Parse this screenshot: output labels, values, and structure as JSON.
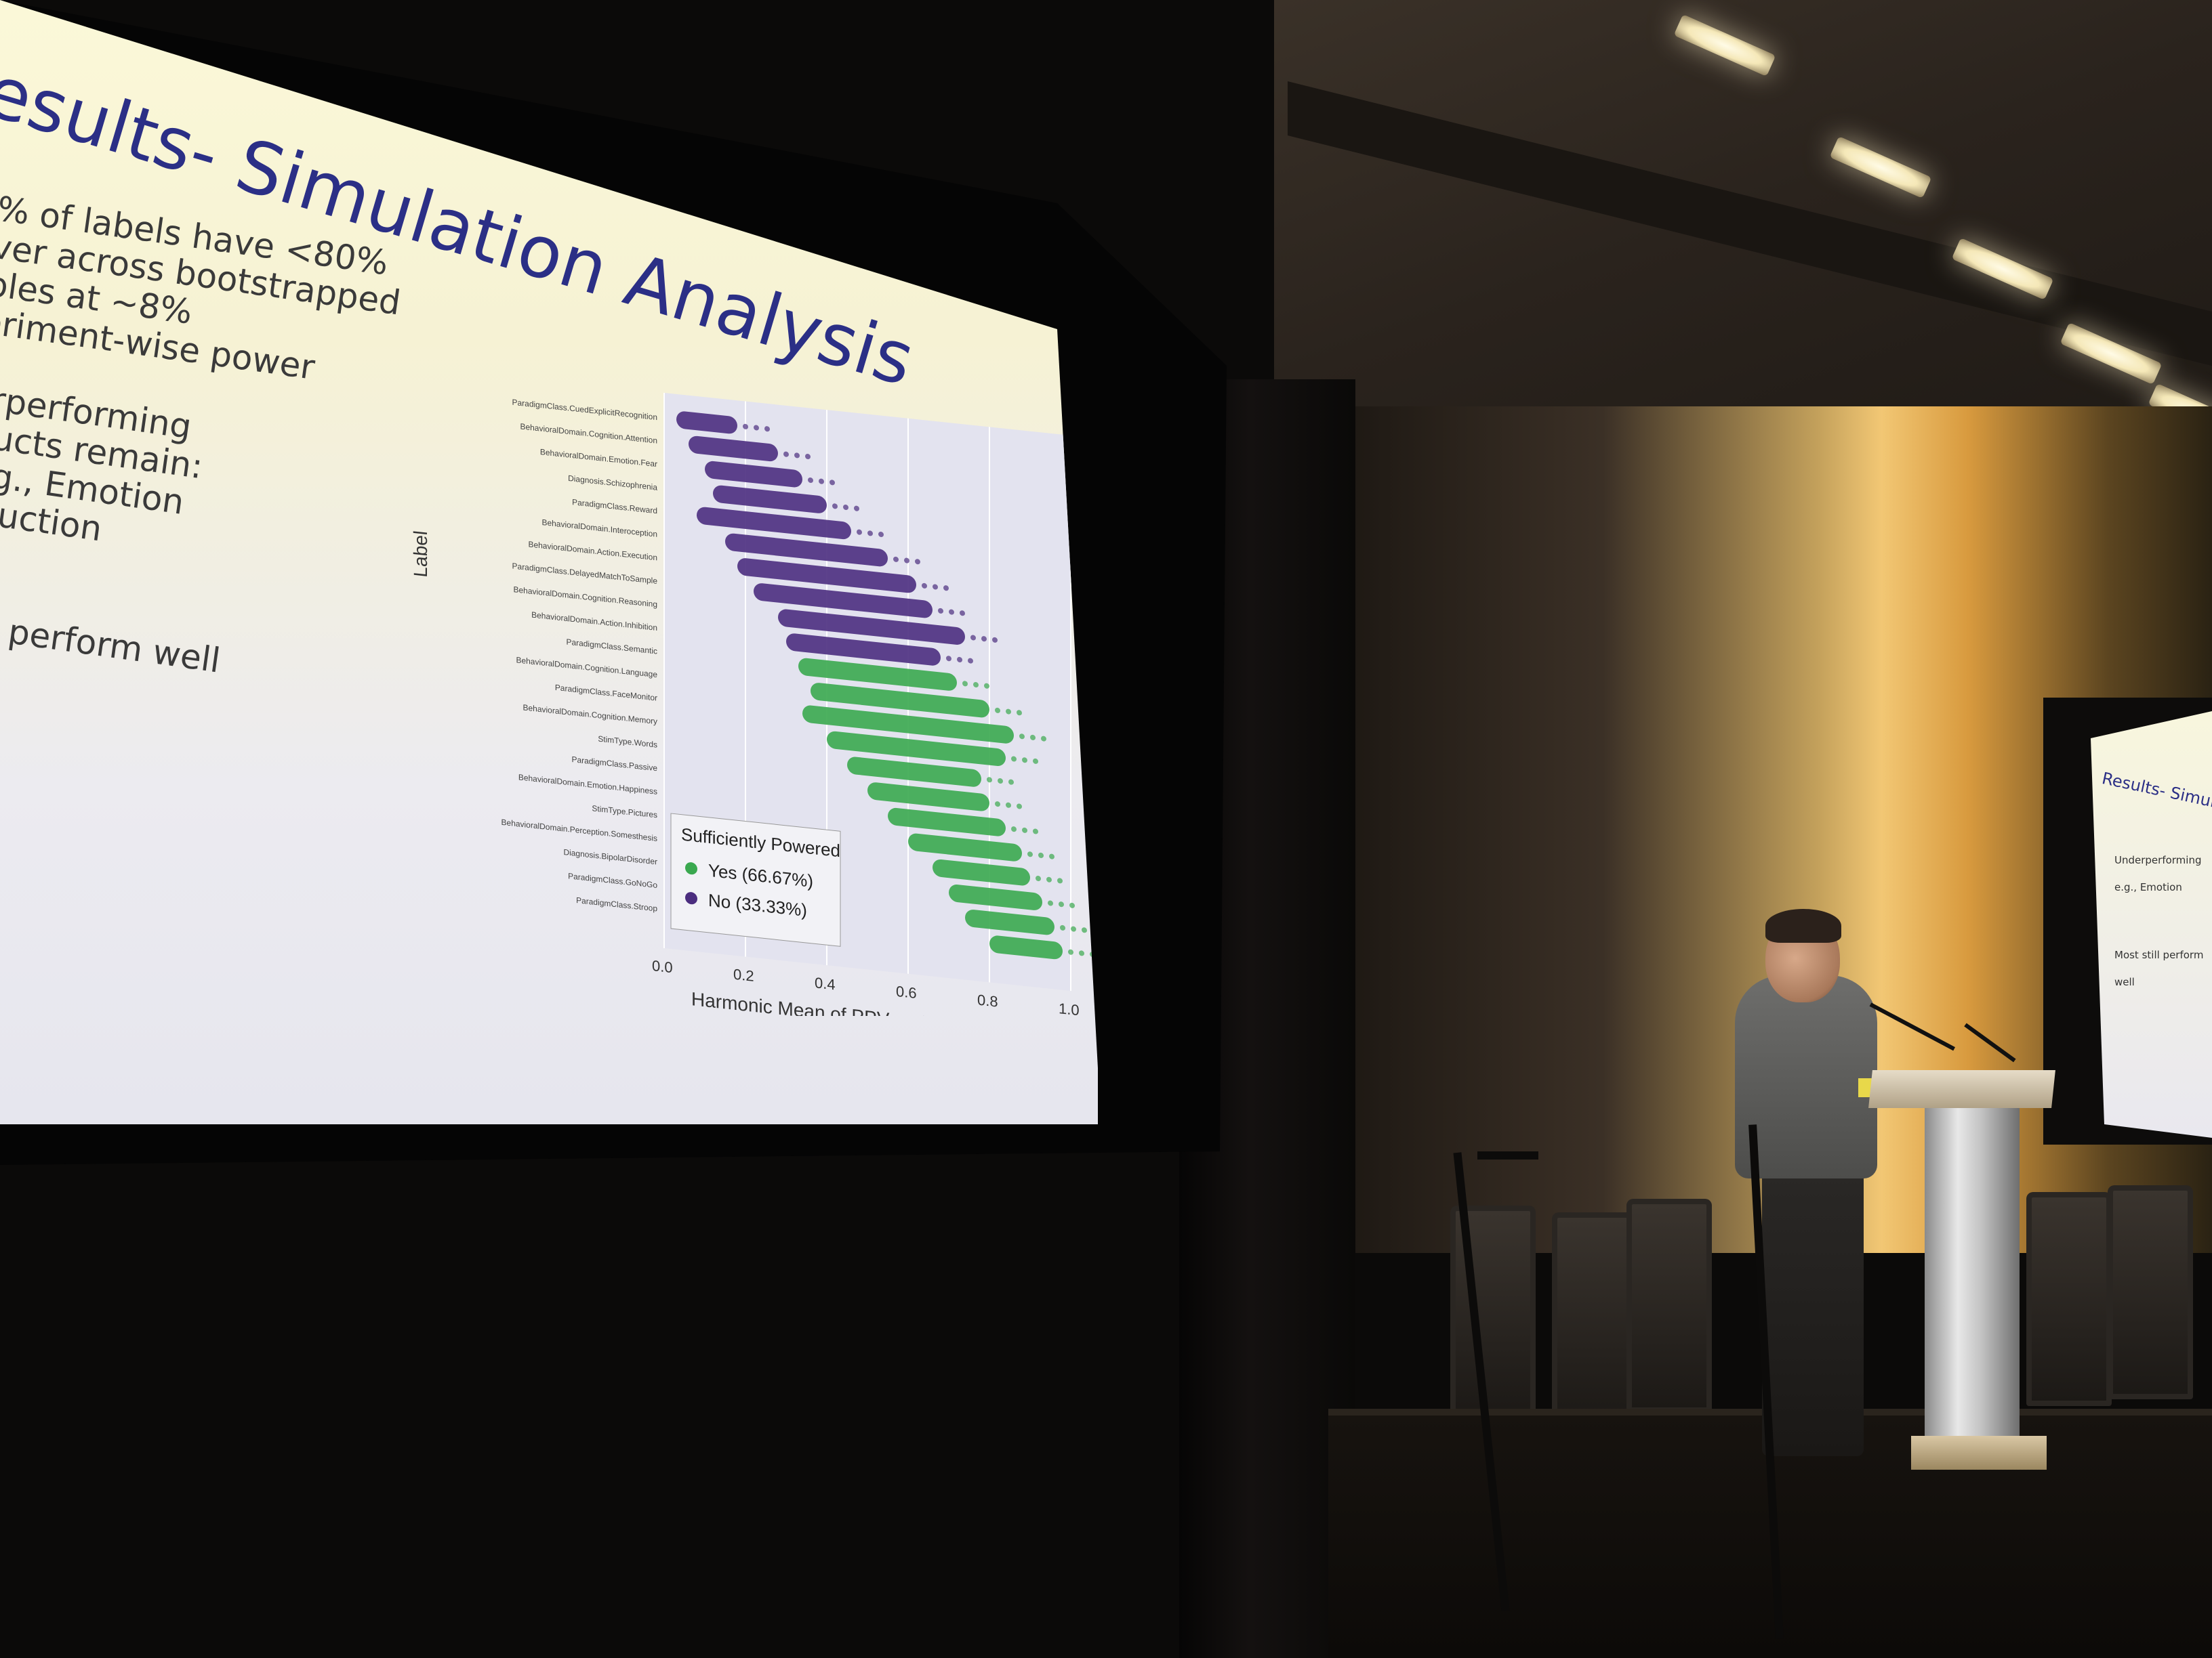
{
  "scene": {
    "description_tag": "conference-talk-photo",
    "colors": {
      "slide_title": "#2b2f86",
      "bullet_text": "#3a3a3a",
      "powered_yes": "#3aa84f",
      "powered_no": "#4b2d7f",
      "plot_bg": "#e3e3ef",
      "stage_glow": "#f2c774"
    }
  },
  "slide": {
    "title": "esults- Simulation Analysis",
    "bullets": [
      "% of labels have <80%",
      "ver across bootstrapped",
      "ples at ~8%",
      "eriment-wise power",
      "",
      "erperforming",
      "tructs remain:",
      "e.g., Emotion",
      "nduction",
      "",
      "",
      "still perform well"
    ]
  },
  "chart_data": {
    "type": "scatter",
    "title": "",
    "xlabel": "Harmonic Mean of PPV and NPV",
    "ylabel": "Label",
    "xlim": [
      0.0,
      1.0
    ],
    "xticks": [
      "0.0",
      "0.2",
      "0.4",
      "0.6",
      "0.8",
      "1.0"
    ],
    "legend": {
      "title": "Sufficiently Powered",
      "position": "bottom-left",
      "entries": [
        {
          "name": "Yes (66.67%)",
          "color": "#3aa84f"
        },
        {
          "name": "No (33.33%)",
          "color": "#4b2d7f"
        }
      ]
    },
    "labels": [
      "ParadigmClass.CuedExplicitRecognition",
      "BehavioralDomain.Cognition.Attention",
      "BehavioralDomain.Emotion.Fear",
      "Diagnosis.Schizophrenia",
      "ParadigmClass.Reward",
      "BehavioralDomain.Interoception",
      "BehavioralDomain.Action.Execution",
      "ParadigmClass.DelayedMatchToSample",
      "BehavioralDomain.Cognition.Reasoning",
      "BehavioralDomain.Action.Inhibition",
      "ParadigmClass.Semantic",
      "BehavioralDomain.Cognition.Language",
      "ParadigmClass.FaceMonitor",
      "BehavioralDomain.Cognition.Memory",
      "StimType.Words",
      "ParadigmClass.Passive",
      "BehavioralDomain.Emotion.Happiness",
      "StimType.Pictures",
      "BehavioralDomain.Perception.Somesthesis",
      "Diagnosis.BipolarDisorder",
      "ParadigmClass.GoNoGo",
      "ParadigmClass.Stroop"
    ],
    "series": [
      {
        "name": "No",
        "powered": false,
        "rows": [
          {
            "row": 0,
            "min": 0.03,
            "max": 0.18
          },
          {
            "row": 1,
            "min": 0.06,
            "max": 0.28
          },
          {
            "row": 2,
            "min": 0.1,
            "max": 0.34
          },
          {
            "row": 3,
            "min": 0.12,
            "max": 0.4
          },
          {
            "row": 4,
            "min": 0.08,
            "max": 0.46
          },
          {
            "row": 5,
            "min": 0.15,
            "max": 0.55
          },
          {
            "row": 6,
            "min": 0.18,
            "max": 0.62
          },
          {
            "row": 7,
            "min": 0.22,
            "max": 0.66
          },
          {
            "row": 8,
            "min": 0.28,
            "max": 0.74
          },
          {
            "row": 9,
            "min": 0.3,
            "max": 0.68
          }
        ]
      },
      {
        "name": "Yes",
        "powered": true,
        "rows": [
          {
            "row": 10,
            "min": 0.33,
            "max": 0.72
          },
          {
            "row": 11,
            "min": 0.36,
            "max": 0.8
          },
          {
            "row": 12,
            "min": 0.34,
            "max": 0.86
          },
          {
            "row": 13,
            "min": 0.4,
            "max": 0.84
          },
          {
            "row": 14,
            "min": 0.45,
            "max": 0.78
          },
          {
            "row": 15,
            "min": 0.5,
            "max": 0.8
          },
          {
            "row": 16,
            "min": 0.55,
            "max": 0.84
          },
          {
            "row": 17,
            "min": 0.6,
            "max": 0.88
          },
          {
            "row": 18,
            "min": 0.66,
            "max": 0.9
          },
          {
            "row": 19,
            "min": 0.7,
            "max": 0.93
          },
          {
            "row": 20,
            "min": 0.74,
            "max": 0.96
          },
          {
            "row": 21,
            "min": 0.8,
            "max": 0.98
          }
        ]
      }
    ]
  },
  "small_slide": {
    "title": "Results- Simulation Analy",
    "bullets": [
      "Underperforming",
      "e.g., Emotion",
      "Most still perform well"
    ]
  }
}
